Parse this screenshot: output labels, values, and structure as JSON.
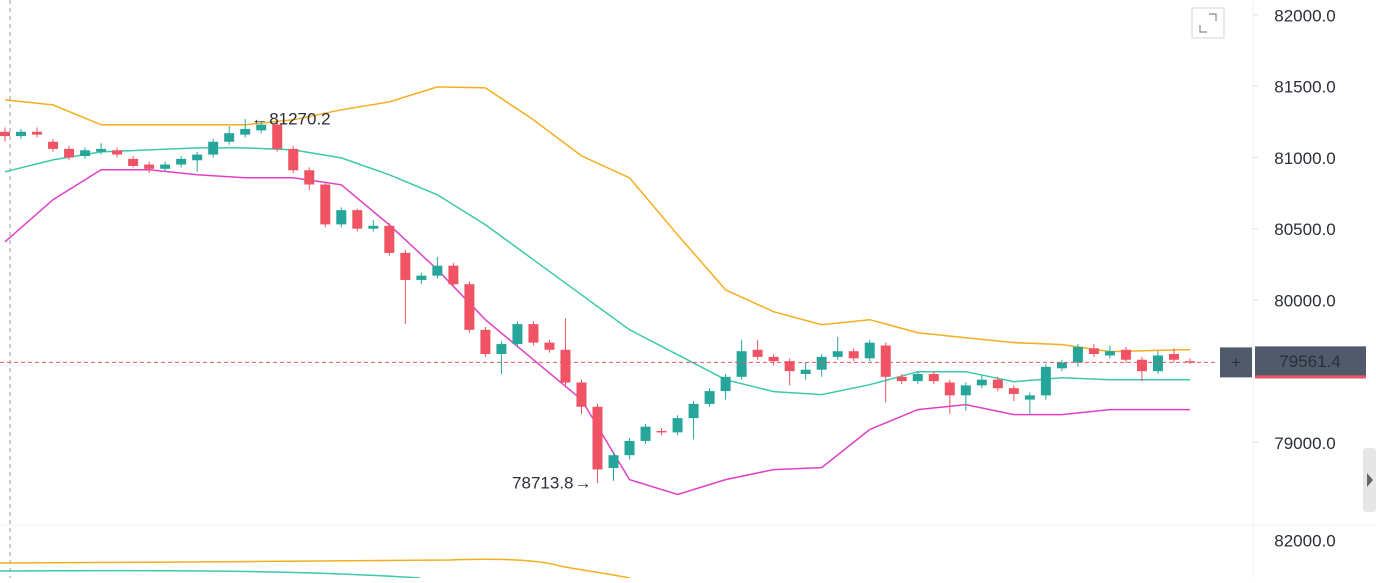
{
  "chart_data": {
    "type": "candlestick",
    "up_color": "#26a69a",
    "down_color": "#ef5364",
    "open": [
      81180,
      81150,
      81180,
      81110,
      81060,
      81010,
      81040,
      81050,
      80990,
      80950,
      80920,
      80950,
      80980,
      81020,
      81110,
      81160,
      81190,
      81230,
      81060,
      80910,
      80810,
      80530,
      80630,
      80500,
      80520,
      80330,
      80140,
      80170,
      80240,
      80110,
      79790,
      79620,
      79690,
      79830,
      79700,
      79650,
      79420,
      79250,
      78820,
      78910,
      79010,
      79080,
      79070,
      79170,
      79270,
      79360,
      79460,
      79650,
      79600,
      79570,
      79480,
      79510,
      79600,
      79640,
      79590,
      79680,
      79460,
      79430,
      79480,
      79420,
      79330,
      79400,
      79440,
      79380,
      79300,
      79330,
      79520,
      79560,
      79660,
      79610,
      79650,
      79580,
      79500,
      79620,
      79570
    ],
    "high": [
      81210,
      81200,
      81210,
      81130,
      81080,
      81070,
      81100,
      81070,
      81010,
      80970,
      80970,
      81010,
      81040,
      81130,
      81220,
      81270.2,
      81250,
      81260,
      81080,
      80930,
      80830,
      80650,
      80640,
      80560,
      80540,
      80350,
      80190,
      80300,
      80260,
      80130,
      79810,
      79710,
      79850,
      79850,
      79720,
      79870,
      79440,
      79270,
      78930,
      79030,
      79130,
      79100,
      79190,
      79290,
      79380,
      79480,
      79720,
      79720,
      79620,
      79590,
      79560,
      79620,
      79740,
      79660,
      79720,
      79700,
      79480,
      79500,
      79500,
      79440,
      79420,
      79470,
      79460,
      79400,
      79350,
      79550,
      79580,
      79690,
      79690,
      79680,
      79670,
      79600,
      79640,
      79660,
      79590
    ],
    "low": [
      81110,
      81130,
      81140,
      81040,
      80980,
      80990,
      81020,
      81000,
      80930,
      80890,
      80900,
      80930,
      80900,
      81000,
      81090,
      81140,
      81170,
      81040,
      80890,
      80770,
      80510,
      80510,
      80480,
      80480,
      80310,
      79830,
      80110,
      80150,
      80090,
      79770,
      79600,
      79480,
      79670,
      79680,
      79630,
      79400,
      79200,
      78713.8,
      78730,
      78880,
      78990,
      79050,
      79050,
      79020,
      79250,
      79300,
      79440,
      79580,
      79540,
      79400,
      79440,
      79460,
      79580,
      79570,
      79570,
      79280,
      79410,
      79410,
      79410,
      79200,
      79220,
      79380,
      79360,
      79290,
      79200,
      79300,
      79500,
      79530,
      79600,
      79590,
      79560,
      79430,
      79480,
      79560,
      79550
    ],
    "close": [
      81150,
      81180,
      81160,
      81060,
      81000,
      81050,
      81060,
      81020,
      80940,
      80920,
      80950,
      80990,
      81020,
      81110,
      81170,
      81200,
      81230,
      81060,
      80910,
      80810,
      80530,
      80630,
      80500,
      80520,
      80330,
      80140,
      80170,
      80240,
      80110,
      79790,
      79620,
      79690,
      79830,
      79700,
      79650,
      79420,
      79250,
      78810,
      78910,
      79010,
      79110,
      79070,
      79170,
      79270,
      79360,
      79460,
      79640,
      79600,
      79570,
      79500,
      79510,
      79600,
      79640,
      79590,
      79700,
      79460,
      79430,
      79480,
      79430,
      79330,
      79400,
      79440,
      79380,
      79340,
      79330,
      79530,
      79560,
      79670,
      79620,
      79640,
      79580,
      79500,
      79610,
      79580,
      79561.4
    ],
    "bands": [
      {
        "color": "#f5ae1f",
        "x": [
          0,
          3,
          6,
          9,
          12,
          15,
          18,
          21,
          24,
          27,
          30,
          33,
          36,
          39,
          42,
          45,
          48,
          51,
          54,
          57,
          60,
          63,
          66,
          69,
          74
        ],
        "values": [
          81404,
          81369,
          81229,
          81229,
          81229,
          81229,
          81264,
          81334,
          81390,
          81495,
          81488,
          81264,
          81011,
          80857,
          80457,
          80070,
          79917,
          79826,
          79861,
          79770,
          79735,
          79700,
          79686,
          79637,
          79651
        ]
      },
      {
        "color": "#3ccaa6",
        "x": [
          0,
          3,
          6,
          9,
          12,
          15,
          18,
          21,
          24,
          27,
          30,
          33,
          36,
          39,
          42,
          45,
          48,
          51,
          54,
          57,
          60,
          63,
          66,
          69,
          74
        ],
        "values": [
          80899,
          80983,
          81039,
          81053,
          81067,
          81067,
          81053,
          80997,
          80878,
          80738,
          80527,
          80282,
          80036,
          79791,
          79615,
          79440,
          79356,
          79335,
          79405,
          79496,
          79496,
          79426,
          79454,
          79440,
          79440
        ]
      },
      {
        "color": "#e040c4",
        "x": [
          0,
          3,
          6,
          9,
          12,
          15,
          18,
          21,
          24,
          27,
          30,
          33,
          36,
          39,
          42,
          45,
          48,
          51,
          54,
          57,
          60,
          63,
          66,
          69,
          74
        ],
        "values": [
          80408,
          80703,
          80913,
          80913,
          80878,
          80857,
          80857,
          80808,
          80527,
          80212,
          79861,
          79580,
          79300,
          78739,
          78634,
          78739,
          78809,
          78823,
          79090,
          79230,
          79265,
          79195,
          79195,
          79230,
          79230
        ]
      }
    ],
    "xlim": [
      0,
      74
    ],
    "ylim": [
      78420,
      82105
    ],
    "yticks": [
      {
        "value": 82000,
        "label": "82000.0"
      },
      {
        "value": 81500,
        "label": "81500.0"
      },
      {
        "value": 81000,
        "label": "81000.0"
      },
      {
        "value": 80500,
        "label": "80500.0"
      },
      {
        "value": 80000,
        "label": "80000.0"
      },
      {
        "value": 79000,
        "label": "79000.0"
      }
    ],
    "high_marker": 81270.2,
    "low_marker": 78713.8,
    "last_price": 79561.4,
    "lower_pane": {
      "yticks": [
        {
          "value": 82000,
          "label": "82000.0"
        }
      ]
    }
  }
}
